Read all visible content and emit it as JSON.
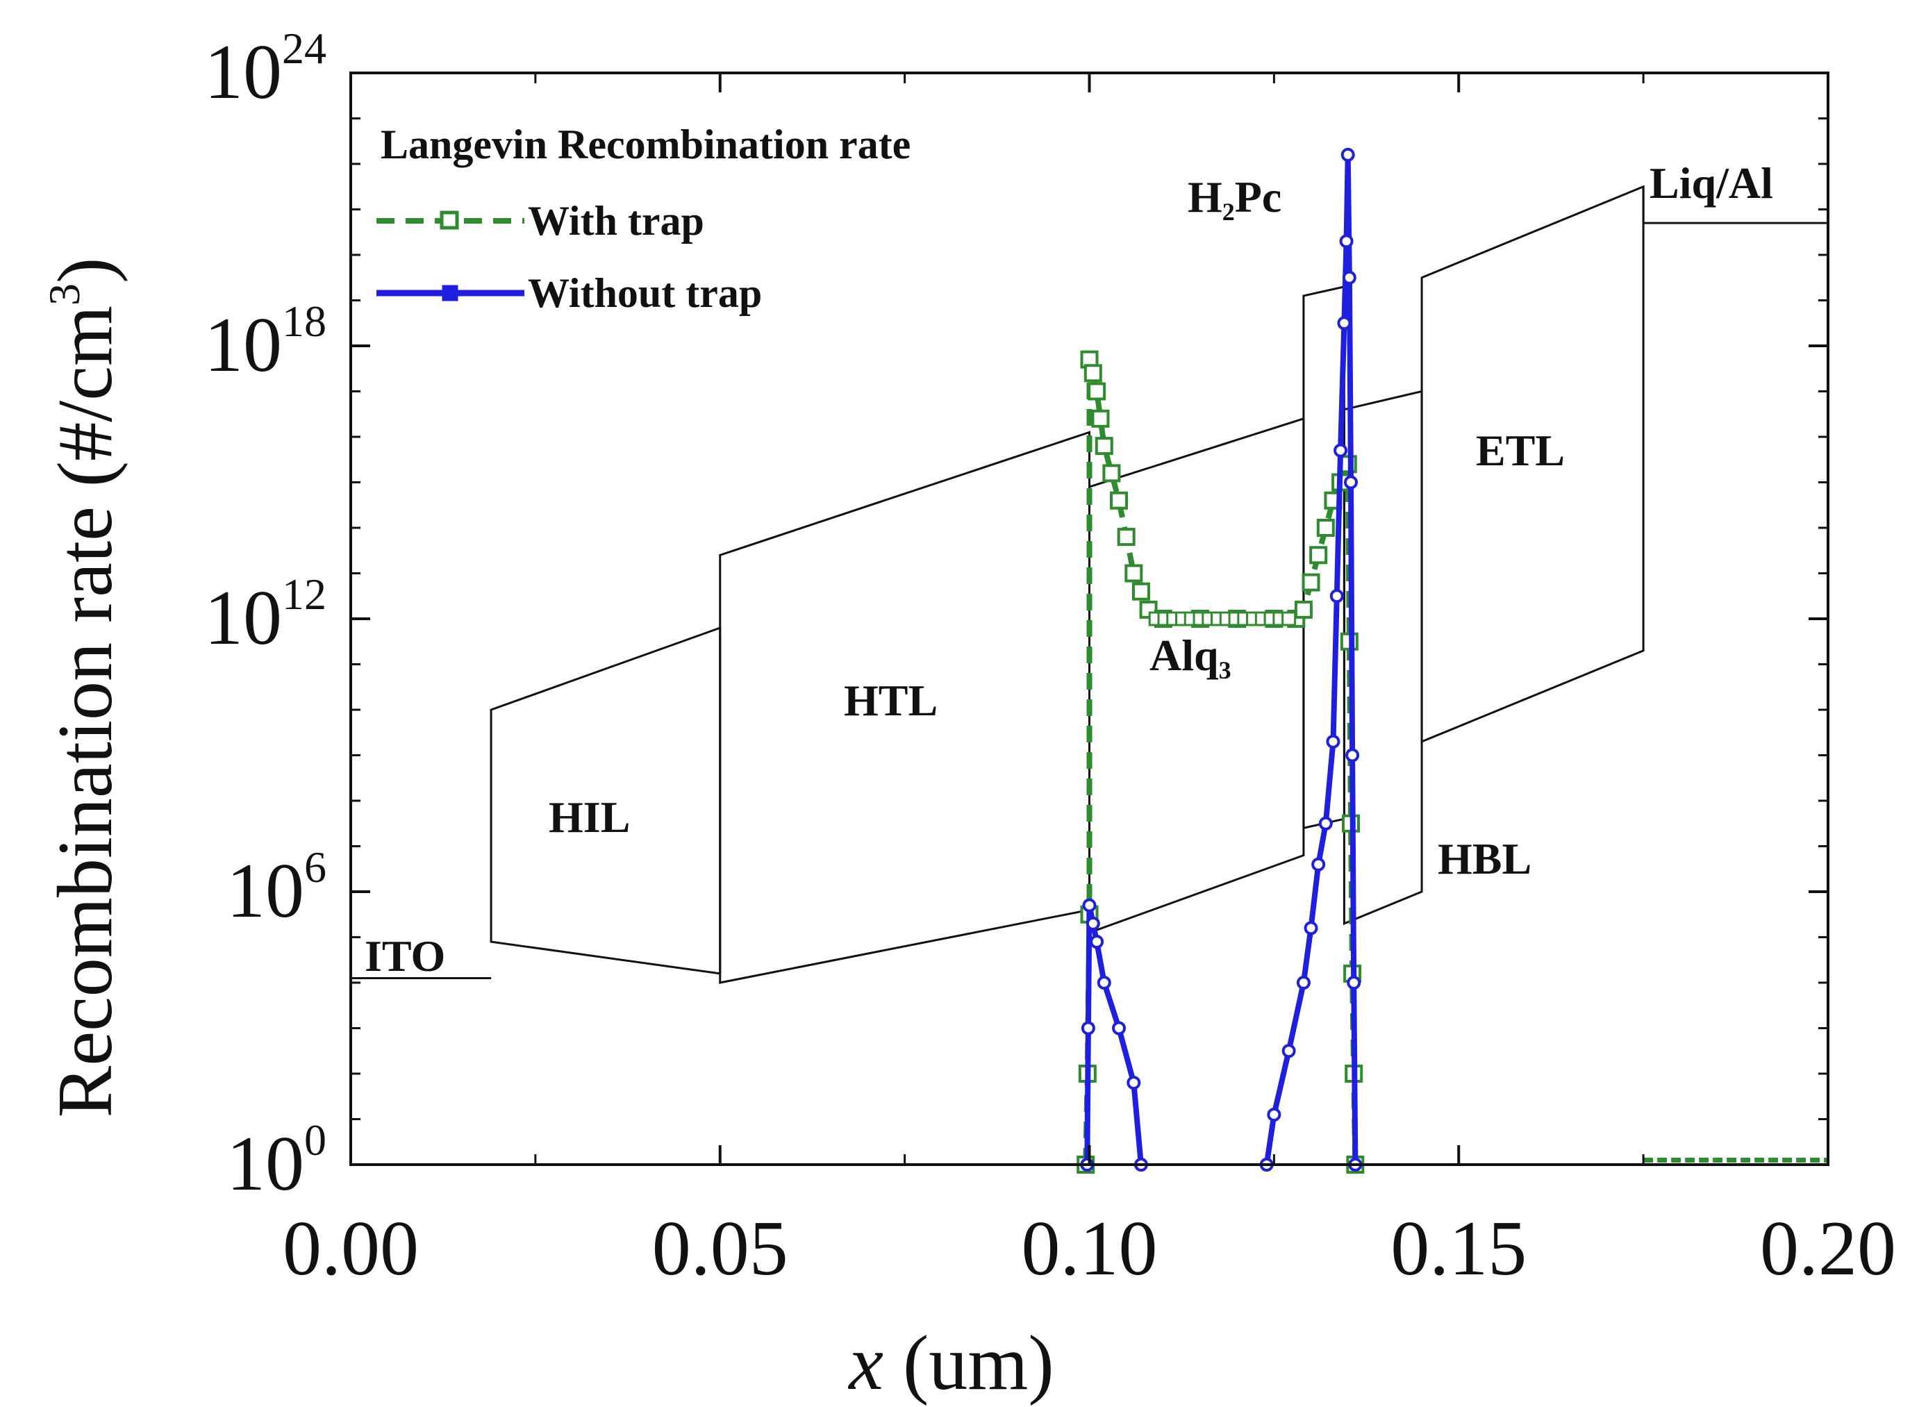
{
  "chart_data": {
    "type": "line",
    "xlabel": "x (um)",
    "ylabel": "Recombination rate (#/cm3)",
    "xlim": [
      0.0,
      0.2
    ],
    "ylim_exponent": [
      0,
      24
    ],
    "y_scale": "log",
    "x_ticks": [
      "0.00",
      "0.05",
      "0.10",
      "0.15",
      "0.20"
    ],
    "x_tick_values": [
      0.0,
      0.05,
      0.1,
      0.15,
      0.2
    ],
    "y_ticks": [
      {
        "base": "10",
        "exp": "0",
        "value": 0
      },
      {
        "base": "10",
        "exp": "6",
        "value": 6
      },
      {
        "base": "10",
        "exp": "12",
        "value": 12
      },
      {
        "base": "10",
        "exp": "18",
        "value": 18
      },
      {
        "base": "10",
        "exp": "24",
        "value": 24
      }
    ],
    "legend": {
      "title": "Langevin Recombination rate",
      "position": "top-left",
      "entries": [
        {
          "name": "With trap",
          "color": "#2e8b2e",
          "style": "dashed, open square markers"
        },
        {
          "name": "Without trap",
          "color": "#1f1fe0",
          "style": "solid, filled markers"
        }
      ]
    },
    "series": [
      {
        "name": "With trap",
        "color": "#2e8b2e",
        "points": [
          [
            0.0995,
            0.0
          ],
          [
            0.09975,
            2.0
          ],
          [
            0.1,
            5.5
          ],
          [
            0.1,
            17.7
          ],
          [
            0.1005,
            17.4
          ],
          [
            0.101,
            17.0
          ],
          [
            0.1015,
            16.4
          ],
          [
            0.102,
            15.8
          ],
          [
            0.103,
            15.2
          ],
          [
            0.104,
            14.6
          ],
          [
            0.105,
            13.8
          ],
          [
            0.106,
            13.0
          ],
          [
            0.107,
            12.6
          ],
          [
            0.108,
            12.2
          ],
          [
            0.11,
            12.0
          ],
          [
            0.115,
            12.0
          ],
          [
            0.12,
            12.0
          ],
          [
            0.125,
            12.0
          ],
          [
            0.128,
            12.0
          ],
          [
            0.129,
            12.2
          ],
          [
            0.13,
            12.8
          ],
          [
            0.131,
            13.4
          ],
          [
            0.132,
            14.0
          ],
          [
            0.133,
            14.6
          ],
          [
            0.134,
            15.0
          ],
          [
            0.135,
            15.4
          ],
          [
            0.1352,
            11.5
          ],
          [
            0.1354,
            7.5
          ],
          [
            0.1356,
            4.2
          ],
          [
            0.1358,
            2.0
          ],
          [
            0.136,
            0.0
          ]
        ],
        "tail": [
          [
            0.175,
            0.1
          ],
          [
            0.2,
            0.1
          ]
        ]
      },
      {
        "name": "Without trap",
        "color": "#1f1fe0",
        "points": [
          [
            0.0997,
            0.0
          ],
          [
            0.09985,
            3.0
          ],
          [
            0.1,
            5.7
          ],
          [
            0.1005,
            5.3
          ],
          [
            0.101,
            4.9
          ],
          [
            0.102,
            4.0
          ],
          [
            0.104,
            3.0
          ],
          [
            0.106,
            1.8
          ],
          [
            0.107,
            0.0
          ]
        ],
        "points2": [
          [
            0.124,
            0.0
          ],
          [
            0.125,
            1.1
          ],
          [
            0.127,
            2.5
          ],
          [
            0.129,
            4.0
          ],
          [
            0.13,
            5.2
          ],
          [
            0.131,
            6.6
          ],
          [
            0.132,
            7.5
          ],
          [
            0.133,
            9.3
          ],
          [
            0.1335,
            12.5
          ],
          [
            0.134,
            15.7
          ],
          [
            0.1345,
            18.5
          ],
          [
            0.1348,
            20.3
          ],
          [
            0.135,
            22.2
          ],
          [
            0.1352,
            19.5
          ],
          [
            0.1354,
            15.0
          ],
          [
            0.1356,
            9.0
          ],
          [
            0.1358,
            4.0
          ],
          [
            0.136,
            0.0
          ]
        ]
      }
    ],
    "band_diagram": {
      "layers": [
        {
          "label": "ITO",
          "x0": 0.0,
          "x1": 0.019,
          "level": 4.1
        },
        {
          "label": "HIL",
          "x0": 0.019,
          "x1": 0.05,
          "lumo_left": 10.0,
          "lumo_right": 11.8,
          "homo_left": 4.9,
          "homo_right": 4.2
        },
        {
          "label": "HTL",
          "x0": 0.05,
          "x1": 0.1,
          "lumo_left": 13.4,
          "lumo_right": 16.1,
          "homo_left": 4.0,
          "homo_right": 5.6
        },
        {
          "label": "Alq3",
          "x0": 0.1,
          "x1": 0.129,
          "lumo_left": 14.9,
          "lumo_right": 16.4,
          "homo_left": 5.1,
          "homo_right": 6.8
        },
        {
          "label": "H2Pc",
          "x0": 0.129,
          "x1": 0.1345,
          "lumo_left": 19.1,
          "lumo_right": 19.3,
          "homo_left": 7.4,
          "homo_right": 7.6
        },
        {
          "label": "HBL",
          "x0": 0.1345,
          "x1": 0.145,
          "lumo_left": 16.6,
          "lumo_right": 17.0,
          "homo_left": 5.3,
          "homo_right": 6.0
        },
        {
          "label": "ETL",
          "x0": 0.145,
          "x1": 0.175,
          "lumo_left": 19.5,
          "lumo_right": 21.5,
          "homo_left": 9.3,
          "homo_right": 11.3
        },
        {
          "label": "Liq/Al",
          "x0": 0.175,
          "x1": 0.2,
          "level": 20.7
        }
      ]
    }
  },
  "labels": {
    "ITO": "ITO",
    "HIL": "HIL",
    "HTL": "HTL",
    "Alq3_main": "Alq",
    "Alq3_sub": "3",
    "H2Pc_a": "H",
    "H2Pc_sub": "2",
    "H2Pc_b": "Pc",
    "HBL": "HBL",
    "ETL": "ETL",
    "LiqAl": "Liq/Al"
  },
  "axis_titles": {
    "x_italic": "x",
    "x_rest": " (um)",
    "y_main": "Recombination rate (#/cm",
    "y_sup": "3",
    "y_close": ")"
  },
  "legend_text": {
    "title": "Langevin Recombination rate",
    "with_trap": "With trap",
    "without_trap": "Without trap"
  }
}
